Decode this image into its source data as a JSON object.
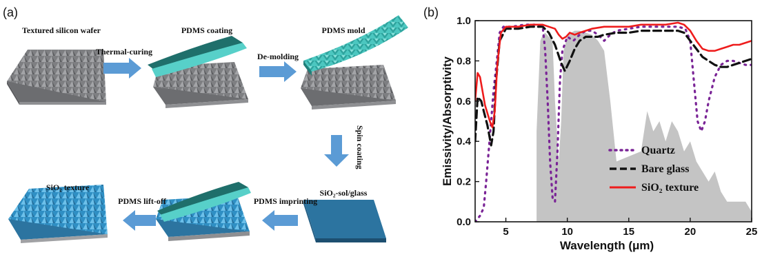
{
  "panel_a": {
    "label": "(a)",
    "steps": {
      "textured_wafer": "Textured silicon wafer",
      "thermal_curing": "Thermal-curing",
      "pdms_coating": "PDMS coating",
      "de_molding": "De-molding",
      "pdms_mold": "PDMS mold",
      "spin_coating": "Spin coating",
      "sio2_sol_glass": "SiO₂-sol/glass",
      "pdms_imprinting": "PDMS imprinting",
      "pdms_lift_off": "PDMS lift-off",
      "sio2_texture": "SiO₂ texture"
    },
    "colors": {
      "silicon": "#7c7d80",
      "pdms": "#49c2bc",
      "sio2": "#3a9fd3",
      "glass": "#2c74a0",
      "arrow": "#5b9bd5"
    }
  },
  "panel_b": {
    "label": "(b)"
  },
  "chart_data": {
    "type": "line",
    "xlabel": "Wavelength (μm)",
    "ylabel": "Emissivity/Absorptivity",
    "xlim": [
      2.5,
      25
    ],
    "ylim": [
      0,
      1.0
    ],
    "xticks": [
      5,
      10,
      15,
      20,
      25
    ],
    "xtick_labels": [
      "5",
      "10",
      "15",
      "20",
      "25"
    ],
    "yticks": [
      0,
      0.2,
      0.4,
      0.6,
      0.8,
      1.0
    ],
    "ytick_labels": [
      "0.0",
      "0.2",
      "0.4",
      "0.6",
      "0.8",
      "1.0"
    ],
    "grid": false,
    "legend_position": "bottom-right",
    "background_spectrum": {
      "name": "",
      "color": "#c4c4c4",
      "x": [
        7.5,
        7.8,
        8.0,
        8.2,
        8.5,
        8.8,
        9.0,
        9.3,
        9.5,
        9.7,
        10.0,
        10.3,
        10.6,
        11.0,
        11.5,
        12.0,
        12.5,
        13.0,
        13.5,
        14.0,
        16.0,
        16.5,
        17.0,
        17.5,
        18.0,
        18.5,
        19.0,
        19.5,
        20.0,
        20.5,
        21.0,
        21.5,
        22.0,
        22.5,
        23.0,
        24.5,
        25.0
      ],
      "y": [
        0.45,
        0.9,
        0.93,
        0.94,
        0.92,
        0.9,
        0.6,
        0.3,
        0.5,
        0.85,
        0.92,
        0.94,
        0.95,
        0.95,
        0.94,
        0.93,
        0.9,
        0.85,
        0.6,
        0.3,
        0.35,
        0.55,
        0.45,
        0.5,
        0.4,
        0.5,
        0.45,
        0.35,
        0.4,
        0.3,
        0.25,
        0.2,
        0.25,
        0.15,
        0.1,
        0.1,
        0.05
      ]
    },
    "series": [
      {
        "name": "Quartz",
        "color": "#7a2496",
        "style": "dotted",
        "x": [
          2.5,
          2.9,
          3.2,
          3.4,
          3.6,
          3.8,
          4.0,
          4.3,
          4.5,
          4.8,
          5.5,
          6.5,
          7.5,
          8.0,
          8.2,
          8.4,
          8.6,
          8.8,
          9.0,
          9.2,
          9.4,
          9.6,
          10.0,
          10.5,
          11.0,
          11.5,
          12.0,
          12.5,
          13.0,
          13.5,
          14.0,
          15.0,
          16.0,
          17.0,
          18.0,
          19.0,
          19.6,
          20.0,
          20.3,
          20.6,
          20.9,
          21.2,
          21.5,
          22.0,
          22.5,
          23.0,
          23.5,
          24.0,
          24.5,
          25.0
        ],
        "y": [
          0.0,
          0.03,
          0.07,
          0.2,
          0.35,
          0.5,
          0.65,
          0.82,
          0.94,
          0.97,
          0.97,
          0.98,
          0.98,
          0.97,
          0.85,
          0.6,
          0.3,
          0.12,
          0.1,
          0.35,
          0.7,
          0.85,
          0.92,
          0.9,
          0.93,
          0.95,
          0.95,
          0.93,
          0.9,
          0.93,
          0.95,
          0.96,
          0.97,
          0.97,
          0.97,
          0.97,
          0.96,
          0.9,
          0.7,
          0.5,
          0.45,
          0.5,
          0.6,
          0.72,
          0.78,
          0.8,
          0.8,
          0.79,
          0.78,
          0.78
        ]
      },
      {
        "name": "Bare glass",
        "color": "#111111",
        "style": "dashed",
        "x": [
          2.5,
          2.7,
          3.0,
          3.2,
          3.5,
          3.8,
          4.0,
          4.2,
          4.5,
          5.0,
          6.0,
          7.0,
          7.5,
          8.0,
          8.5,
          9.0,
          9.5,
          9.8,
          10.2,
          10.6,
          11.0,
          11.5,
          12.0,
          12.5,
          13.0,
          14.0,
          15.0,
          16.0,
          17.0,
          18.0,
          19.0,
          19.5,
          20.0,
          20.5,
          21.0,
          21.5,
          22.0,
          22.5,
          23.0,
          23.5,
          24.0,
          24.5,
          25.0
        ],
        "y": [
          0.4,
          0.62,
          0.6,
          0.55,
          0.48,
          0.38,
          0.45,
          0.7,
          0.9,
          0.96,
          0.96,
          0.97,
          0.97,
          0.97,
          0.94,
          0.88,
          0.79,
          0.75,
          0.8,
          0.86,
          0.9,
          0.92,
          0.92,
          0.92,
          0.93,
          0.94,
          0.94,
          0.95,
          0.95,
          0.95,
          0.95,
          0.94,
          0.9,
          0.86,
          0.82,
          0.8,
          0.78,
          0.77,
          0.77,
          0.78,
          0.79,
          0.8,
          0.81
        ]
      },
      {
        "name": "SiO₂ texture",
        "color": "#ee1c1c",
        "style": "solid",
        "x": [
          2.5,
          2.7,
          2.9,
          3.1,
          3.3,
          3.5,
          3.7,
          3.9,
          4.1,
          4.3,
          4.6,
          5.0,
          6.0,
          7.0,
          7.5,
          8.0,
          8.5,
          9.0,
          9.3,
          9.6,
          9.9,
          10.2,
          10.6,
          11.0,
          11.5,
          12.0,
          13.0,
          14.0,
          15.0,
          16.0,
          17.0,
          18.0,
          19.0,
          19.5,
          20.0,
          20.5,
          21.0,
          21.5,
          22.0,
          22.5,
          23.0,
          23.5,
          24.0,
          24.5,
          25.0
        ],
        "y": [
          0.6,
          0.74,
          0.72,
          0.65,
          0.58,
          0.54,
          0.5,
          0.47,
          0.55,
          0.78,
          0.94,
          0.97,
          0.97,
          0.98,
          0.98,
          0.98,
          0.97,
          0.96,
          0.93,
          0.91,
          0.92,
          0.94,
          0.93,
          0.94,
          0.95,
          0.96,
          0.97,
          0.97,
          0.97,
          0.98,
          0.98,
          0.98,
          0.99,
          0.98,
          0.95,
          0.9,
          0.86,
          0.85,
          0.85,
          0.86,
          0.87,
          0.88,
          0.88,
          0.89,
          0.9
        ]
      }
    ]
  }
}
